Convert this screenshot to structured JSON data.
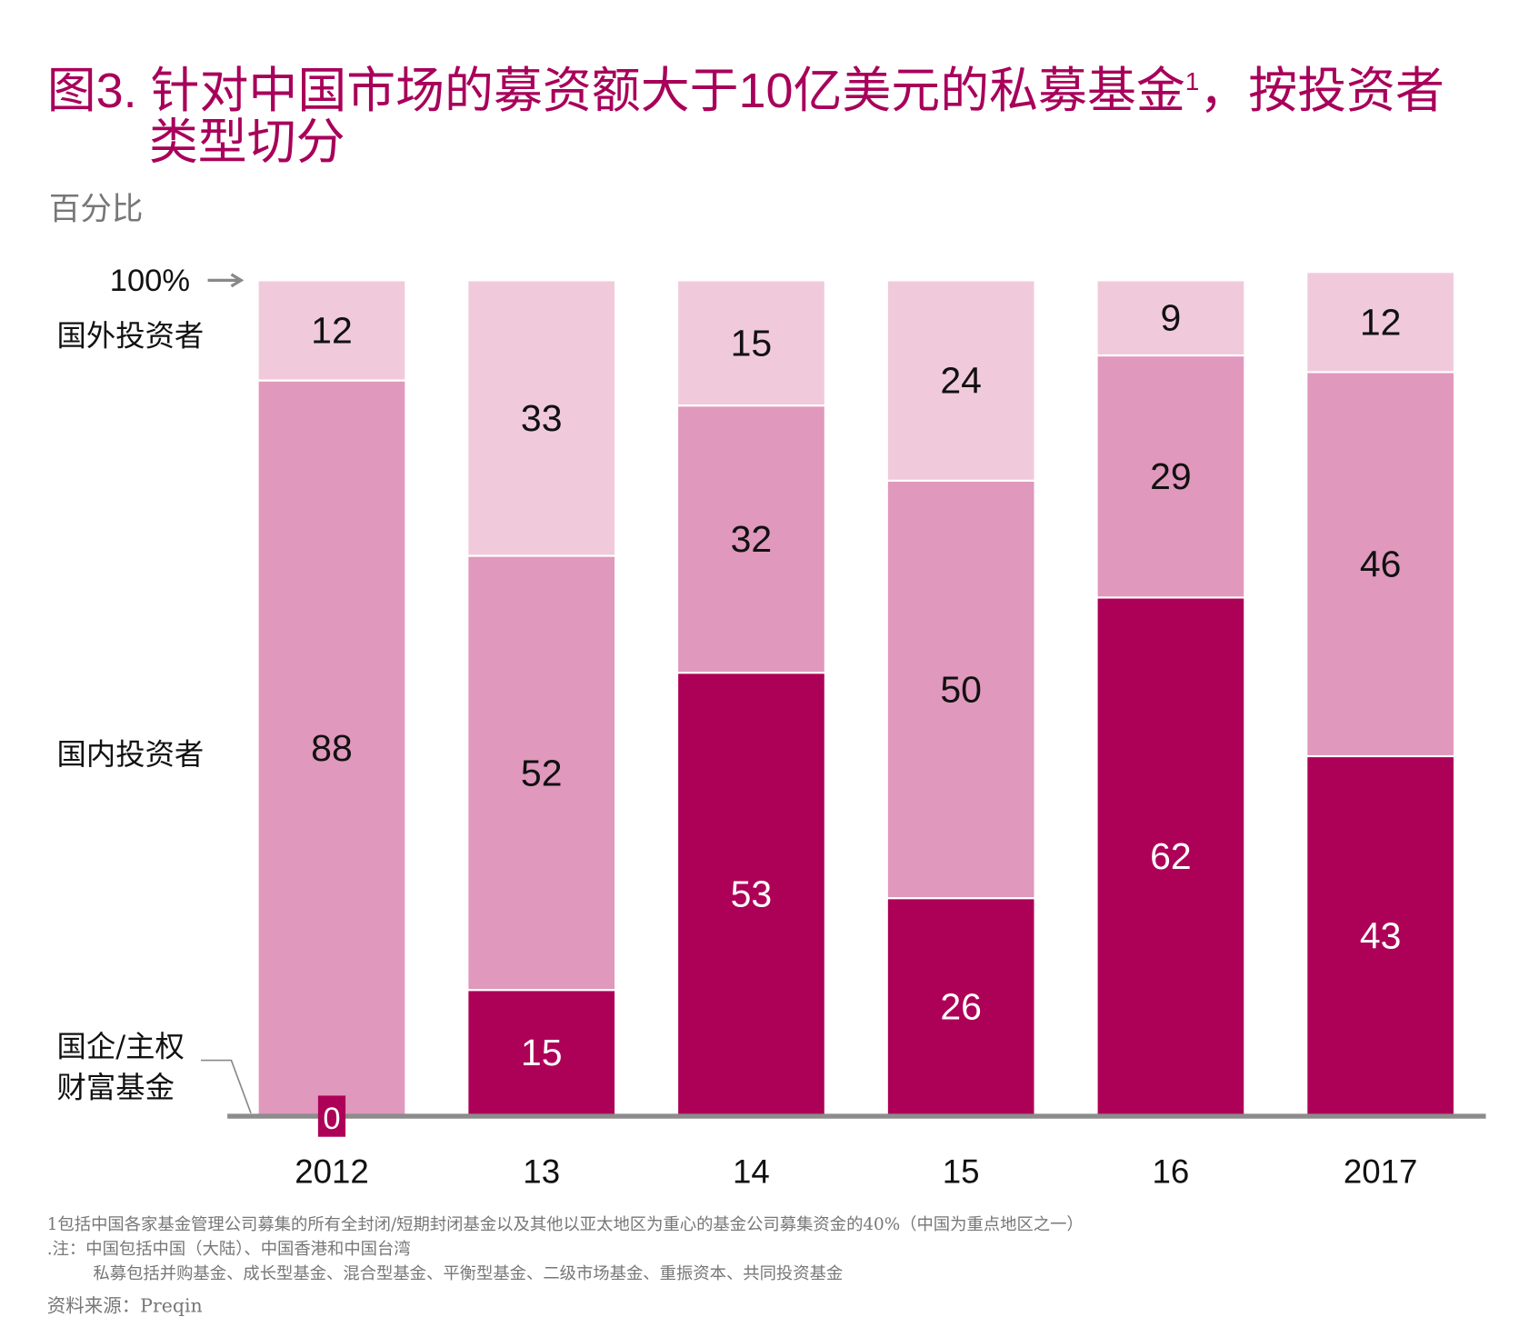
{
  "title": {
    "prefix": "图3. 针对中国市场的募资额大于10亿美元的私募基金",
    "sup": "1",
    "suffix": "，按投资者",
    "line2": "类型切分"
  },
  "unit_label": "百分比",
  "top_marker": "100%",
  "colors": {
    "title": "#A8005A",
    "soe": "#AD0057",
    "domestic": "#E098BC",
    "foreign": "#F0CADB",
    "axis": "#8C8C8C"
  },
  "chart_data": {
    "type": "bar",
    "stacked": true,
    "categories": [
      "2012",
      "13",
      "14",
      "15",
      "16",
      "2017"
    ],
    "ylim": [
      0,
      100
    ],
    "ylabel": "百分比",
    "legend_placement": "left",
    "series": [
      {
        "name": "国企/主权财富基金",
        "values": [
          0,
          15,
          53,
          26,
          62,
          43
        ]
      },
      {
        "name": "国内投资者",
        "values": [
          88,
          52,
          32,
          50,
          29,
          46
        ]
      },
      {
        "name": "国外投资者",
        "values": [
          12,
          33,
          15,
          24,
          9,
          12
        ]
      }
    ]
  },
  "series_labels": {
    "foreign": "国外投资者",
    "domestic": "国内投资者",
    "soe_line1": "国企/主权",
    "soe_line2": "财富基金"
  },
  "footnotes": {
    "note1": "1包括中国各家基金管理公司募集的所有全封闭/短期封闭基金以及其他以亚太地区为重心的基金公司募集资金的40%（中国为重点地区之一）",
    "note2": ".注：中国包括中国（大陆）、中国香港和中国台湾",
    "note3": "私募包括并购基金、成长型基金、混合型基金、平衡型基金、二级市场基金、重振资本、共同投资基金",
    "source": "资料来源：Preqin"
  }
}
